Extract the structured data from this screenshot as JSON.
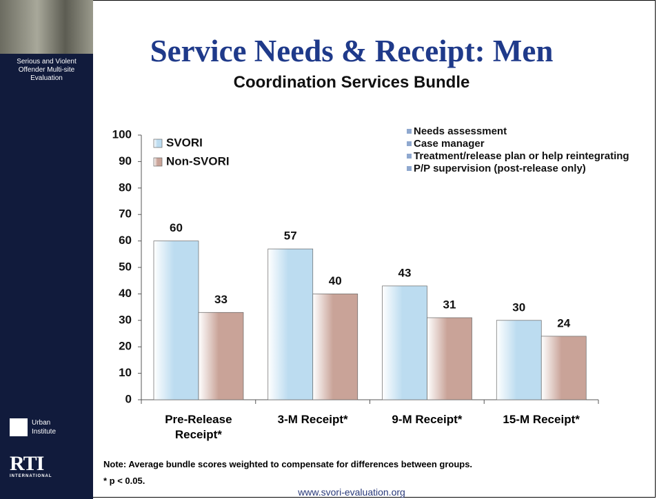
{
  "sidebar": {
    "project": "Serious and Violent Offender Multi-site Evaluation",
    "logo1": "Urban Institute",
    "logo2": "RTI",
    "logo2_sub": "INTERNATIONAL"
  },
  "chart_data": {
    "type": "bar",
    "title": "Service Needs & Receipt: Men",
    "subtitle": "Coordination Services Bundle",
    "categories": [
      "Pre-Release Receipt*",
      "3-M Receipt*",
      "9-M Receipt*",
      "15-M Receipt*"
    ],
    "series": [
      {
        "name": "SVORI",
        "color": "#bcdcf0",
        "values": [
          60,
          57,
          43,
          30
        ]
      },
      {
        "name": "Non-SVORI",
        "color": "#c9a398",
        "values": [
          33,
          40,
          31,
          24
        ]
      }
    ],
    "ylim": [
      0,
      100
    ],
    "yticks": [
      0,
      10,
      20,
      30,
      40,
      50,
      60,
      70,
      80,
      90,
      100
    ],
    "grid": false,
    "legend_corner": "top-left",
    "bundle_items": [
      "Needs assessment",
      "Case manager",
      "Treatment/release plan or help reintegrating",
      "P/P supervision (post-release only)"
    ],
    "notes": [
      "Note: Average bundle scores weighted to compensate for differences between groups.",
      "* p < 0.05."
    ]
  },
  "footer": {
    "url": "www.svori-evaluation.org"
  }
}
